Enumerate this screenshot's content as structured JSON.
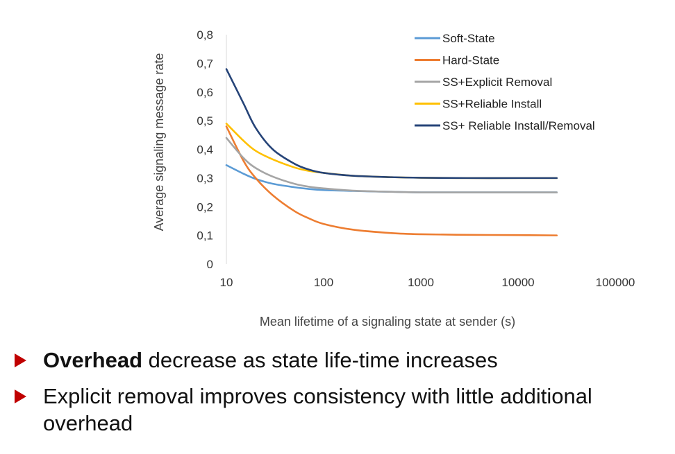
{
  "chart_data": {
    "type": "line",
    "title": "",
    "xlabel": "Mean lifetime of a signaling state at sender (s)",
    "ylabel": "Average signaling message rate",
    "x_scale": "log",
    "xlim": [
      10,
      100000
    ],
    "ylim": [
      0,
      0.8
    ],
    "x_ticks": [
      "10",
      "100",
      "1000",
      "10000",
      "100000"
    ],
    "y_ticks": [
      "0",
      "0,1",
      "0,2",
      "0,3",
      "0,4",
      "0,5",
      "0,6",
      "0,7",
      "0,8"
    ],
    "grid": false,
    "legend_position": "top-right",
    "series": [
      {
        "name": "Soft-State",
        "color": "#5b9bd5",
        "x": [
          10,
          15,
          20,
          30,
          50,
          70,
          100,
          200,
          500,
          1000,
          3000,
          10000,
          25000
        ],
        "y": [
          0.345,
          0.315,
          0.297,
          0.28,
          0.268,
          0.262,
          0.258,
          0.255,
          0.252,
          0.25,
          0.25,
          0.25,
          0.25
        ]
      },
      {
        "name": "Hard-State",
        "color": "#ed7d31",
        "x": [
          10,
          15,
          20,
          30,
          50,
          70,
          100,
          200,
          500,
          1000,
          3000,
          10000,
          25000
        ],
        "y": [
          0.48,
          0.36,
          0.3,
          0.24,
          0.185,
          0.16,
          0.14,
          0.12,
          0.108,
          0.104,
          0.102,
          0.101,
          0.1
        ]
      },
      {
        "name": "SS+Explicit Removal",
        "color": "#a5a5a5",
        "x": [
          10,
          15,
          20,
          30,
          50,
          70,
          100,
          200,
          500,
          1000,
          3000,
          10000,
          25000
        ],
        "y": [
          0.44,
          0.37,
          0.335,
          0.305,
          0.28,
          0.27,
          0.264,
          0.256,
          0.252,
          0.25,
          0.25,
          0.25,
          0.25
        ]
      },
      {
        "name": "SS+Reliable Install",
        "color": "#ffc000",
        "x": [
          10,
          15,
          20,
          30,
          50,
          70,
          100,
          200,
          500,
          1000,
          3000,
          10000,
          25000
        ],
        "y": [
          0.49,
          0.43,
          0.395,
          0.365,
          0.337,
          0.325,
          0.318,
          0.308,
          0.303,
          0.301,
          0.3,
          0.3,
          0.3
        ]
      },
      {
        "name": "SS+ Reliable Install/Removal",
        "color": "#264478",
        "x": [
          10,
          15,
          20,
          30,
          50,
          70,
          100,
          200,
          500,
          1000,
          3000,
          10000,
          25000
        ],
        "y": [
          0.68,
          0.56,
          0.475,
          0.4,
          0.35,
          0.33,
          0.318,
          0.308,
          0.303,
          0.301,
          0.3,
          0.3,
          0.3
        ]
      }
    ]
  },
  "bullets": [
    {
      "bold": "Overhead",
      "text": " decrease as state life-time increases"
    },
    {
      "bold": "",
      "text": "Explicit removal improves consistency with little additional overhead"
    }
  ]
}
